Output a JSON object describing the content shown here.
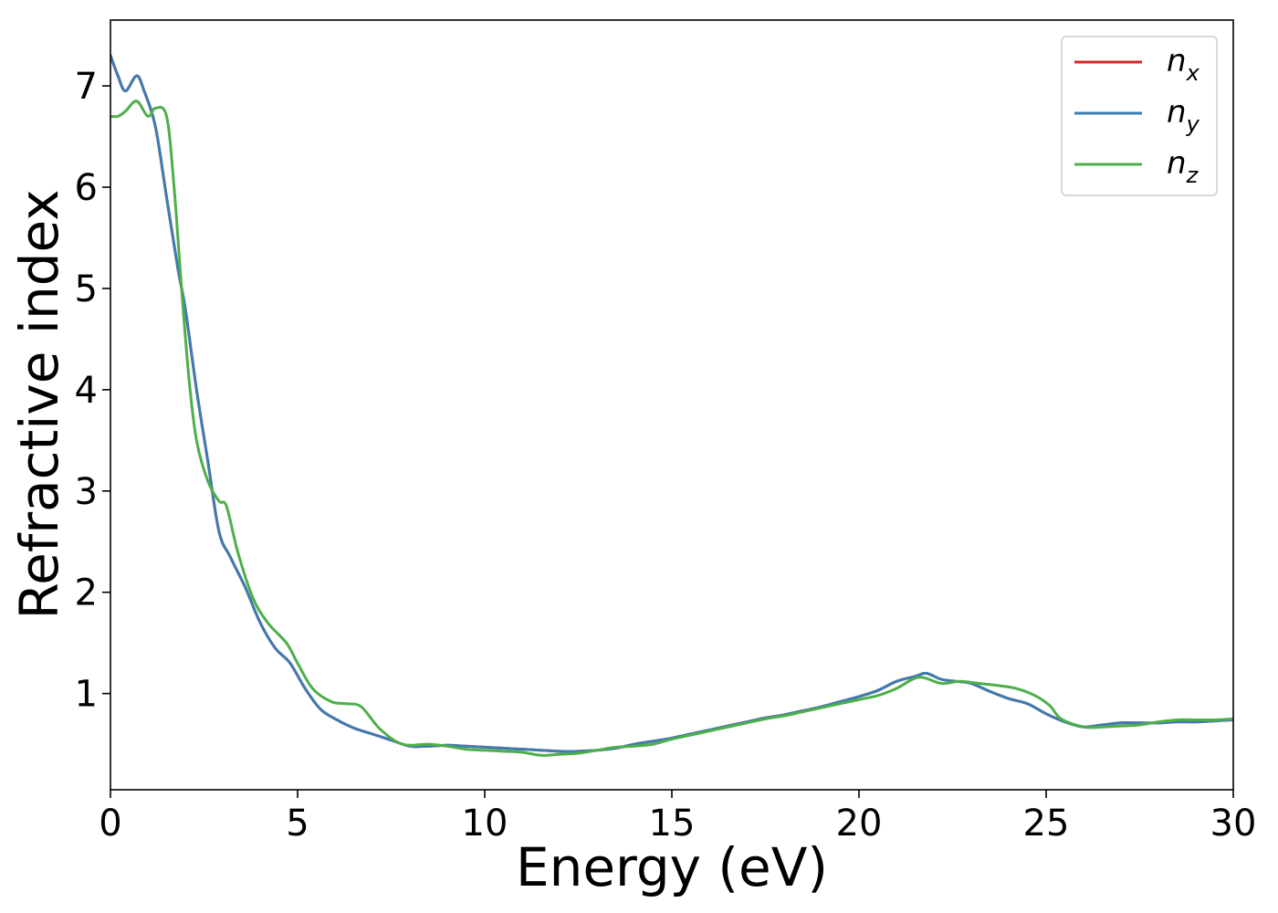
{
  "chart_data": {
    "type": "line",
    "title": "",
    "xlabel": "Energy (eV)",
    "ylabel": "Refractive index",
    "xlim": [
      0,
      30
    ],
    "ylim": [
      0.05,
      7.65
    ],
    "xticks": [
      0,
      5,
      10,
      15,
      20,
      25,
      30
    ],
    "yticks": [
      1,
      2,
      3,
      4,
      5,
      6,
      7
    ],
    "grid": false,
    "legend_position": "top-right",
    "series": [
      {
        "name": "n_x",
        "legend_base": "n",
        "legend_sub": "x",
        "color": "#d62728",
        "x": [
          0,
          0.2,
          0.4,
          0.7,
          0.9,
          1.2,
          1.5,
          1.8,
          2.0,
          2.3,
          2.6,
          2.9,
          3.2,
          3.6,
          4.0,
          4.4,
          4.8,
          5.2,
          5.6,
          6.0,
          6.5,
          7.0,
          7.5,
          8.0,
          8.5,
          9.0,
          9.5,
          10.0,
          10.5,
          11.0,
          11.5,
          12.0,
          12.5,
          13.0,
          13.5,
          14.0,
          14.5,
          15.0,
          15.5,
          16.0,
          16.5,
          17.0,
          17.5,
          18.0,
          18.5,
          19.0,
          19.5,
          20.0,
          20.5,
          21.0,
          21.5,
          21.8,
          22.2,
          22.6,
          23.0,
          23.5,
          24.0,
          24.5,
          25.0,
          25.5,
          26.0,
          26.5,
          27.0,
          27.5,
          28.0,
          28.5,
          29.0,
          29.5,
          30.0
        ],
        "y": [
          7.3,
          7.1,
          6.95,
          7.1,
          6.95,
          6.6,
          5.9,
          5.2,
          4.8,
          4.0,
          3.3,
          2.6,
          2.35,
          2.05,
          1.7,
          1.45,
          1.3,
          1.05,
          0.85,
          0.75,
          0.66,
          0.6,
          0.54,
          0.48,
          0.48,
          0.49,
          0.48,
          0.47,
          0.46,
          0.45,
          0.44,
          0.43,
          0.43,
          0.44,
          0.46,
          0.5,
          0.53,
          0.56,
          0.6,
          0.64,
          0.68,
          0.72,
          0.76,
          0.79,
          0.83,
          0.87,
          0.92,
          0.97,
          1.03,
          1.12,
          1.17,
          1.2,
          1.14,
          1.12,
          1.1,
          1.02,
          0.95,
          0.9,
          0.8,
          0.72,
          0.67,
          0.69,
          0.71,
          0.71,
          0.71,
          0.72,
          0.72,
          0.73,
          0.74
        ]
      },
      {
        "name": "n_y",
        "legend_base": "n",
        "legend_sub": "y",
        "color": "#3e7bb1",
        "x": [
          0,
          0.2,
          0.4,
          0.7,
          0.9,
          1.2,
          1.5,
          1.8,
          2.0,
          2.3,
          2.6,
          2.9,
          3.2,
          3.6,
          4.0,
          4.4,
          4.8,
          5.2,
          5.6,
          6.0,
          6.5,
          7.0,
          7.5,
          8.0,
          8.5,
          9.0,
          9.5,
          10.0,
          10.5,
          11.0,
          11.5,
          12.0,
          12.5,
          13.0,
          13.5,
          14.0,
          14.5,
          15.0,
          15.5,
          16.0,
          16.5,
          17.0,
          17.5,
          18.0,
          18.5,
          19.0,
          19.5,
          20.0,
          20.5,
          21.0,
          21.5,
          21.8,
          22.2,
          22.6,
          23.0,
          23.5,
          24.0,
          24.5,
          25.0,
          25.5,
          26.0,
          26.5,
          27.0,
          27.5,
          28.0,
          28.5,
          29.0,
          29.5,
          30.0
        ],
        "y": [
          7.3,
          7.1,
          6.95,
          7.1,
          6.95,
          6.6,
          5.9,
          5.2,
          4.8,
          4.0,
          3.3,
          2.6,
          2.35,
          2.05,
          1.7,
          1.45,
          1.3,
          1.05,
          0.85,
          0.75,
          0.66,
          0.6,
          0.54,
          0.48,
          0.48,
          0.49,
          0.48,
          0.47,
          0.46,
          0.45,
          0.44,
          0.43,
          0.43,
          0.44,
          0.46,
          0.5,
          0.53,
          0.56,
          0.6,
          0.64,
          0.68,
          0.72,
          0.76,
          0.79,
          0.83,
          0.87,
          0.92,
          0.97,
          1.03,
          1.12,
          1.17,
          1.2,
          1.14,
          1.12,
          1.1,
          1.02,
          0.95,
          0.9,
          0.8,
          0.72,
          0.67,
          0.69,
          0.71,
          0.71,
          0.71,
          0.72,
          0.72,
          0.73,
          0.74
        ]
      },
      {
        "name": "n_z",
        "legend_base": "n",
        "legend_sub": "z",
        "color": "#4daf4a",
        "x": [
          0,
          0.2,
          0.4,
          0.7,
          1.0,
          1.2,
          1.5,
          1.7,
          1.9,
          2.1,
          2.3,
          2.6,
          2.9,
          3.1,
          3.4,
          3.8,
          4.2,
          4.7,
          5.0,
          5.4,
          5.9,
          6.3,
          6.7,
          7.2,
          7.8,
          8.5,
          9.0,
          9.5,
          10.0,
          10.5,
          11.0,
          11.5,
          12.0,
          12.5,
          13.0,
          13.5,
          14.0,
          14.5,
          15.0,
          15.5,
          16.0,
          16.5,
          17.0,
          17.5,
          18.0,
          18.5,
          19.0,
          19.5,
          20.0,
          20.5,
          21.0,
          21.6,
          22.2,
          22.7,
          23.2,
          23.7,
          24.2,
          24.7,
          25.1,
          25.4,
          26.0,
          26.5,
          27.0,
          27.5,
          28.0,
          28.5,
          29.0,
          29.5,
          30.0
        ],
        "y": [
          6.7,
          6.7,
          6.75,
          6.85,
          6.7,
          6.78,
          6.7,
          6.0,
          5.0,
          4.1,
          3.5,
          3.1,
          2.9,
          2.85,
          2.4,
          1.95,
          1.7,
          1.5,
          1.3,
          1.05,
          0.92,
          0.9,
          0.87,
          0.65,
          0.5,
          0.5,
          0.48,
          0.45,
          0.44,
          0.43,
          0.42,
          0.39,
          0.4,
          0.41,
          0.44,
          0.47,
          0.48,
          0.5,
          0.55,
          0.59,
          0.63,
          0.67,
          0.71,
          0.75,
          0.78,
          0.82,
          0.86,
          0.9,
          0.94,
          0.98,
          1.05,
          1.16,
          1.1,
          1.12,
          1.1,
          1.08,
          1.05,
          0.98,
          0.88,
          0.75,
          0.67,
          0.67,
          0.68,
          0.69,
          0.72,
          0.74,
          0.74,
          0.74,
          0.75
        ]
      }
    ]
  }
}
